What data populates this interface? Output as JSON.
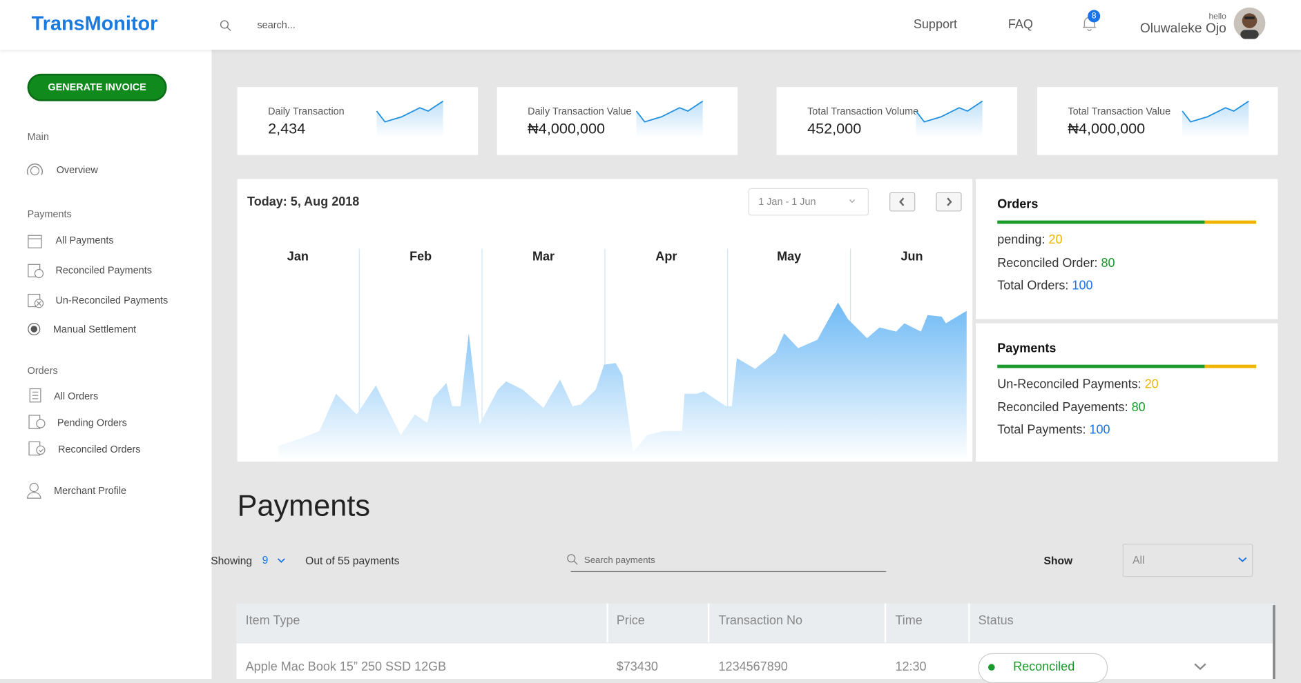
{
  "header": {
    "logo": "TransMonitor",
    "search_placeholder": "search...",
    "nav": [
      "Support",
      "FAQ"
    ],
    "notifications": 8,
    "greeting": "hello",
    "user": "Oluwaleke Ojo"
  },
  "sidebar": {
    "button": "GENERATE INVOICE",
    "sections": [
      {
        "title": "Main",
        "items": [
          "Overview"
        ]
      },
      {
        "title": "Payments",
        "items": [
          "All Payments",
          "Reconciled Payments",
          "Un-Reconciled Payments",
          "Manual Settlement"
        ]
      },
      {
        "title": "Orders",
        "items": [
          "All Orders",
          "Pending Orders",
          "Reconciled Orders"
        ]
      }
    ],
    "profile": "Merchant Profile"
  },
  "stats": [
    {
      "label": "Daily Transaction",
      "value": "2,434"
    },
    {
      "label": "Daily Transaction Value",
      "value": "₦4,000,000"
    },
    {
      "label": "Total Transaction Volume",
      "value": "452,000"
    },
    {
      "label": "Total Transaction Value",
      "value": "₦4,000,000"
    }
  ],
  "chart_panel": {
    "title": "Today: 5, Aug 2018",
    "date_range": "1 Jan - 1 Jun",
    "months": [
      "Jan",
      "Feb",
      "Mar",
      "Apr",
      "May",
      "Jun"
    ]
  },
  "orders": {
    "title": "Orders",
    "items": [
      {
        "label": "pending:",
        "value": 20
      },
      {
        "label": "Reconciled Order:",
        "value": 80
      },
      {
        "label": "Total Orders:",
        "value": 100
      }
    ]
  },
  "payments_summary": {
    "title": "Payments",
    "items": [
      {
        "label": "Un-Reconciled Payments:",
        "value": 20
      },
      {
        "label": "Reconciled Payements:",
        "value": 80
      },
      {
        "label": "Total Payments:",
        "value": 100
      }
    ]
  },
  "payments": {
    "heading": "Payments",
    "showing_label": "Showing",
    "showing_count": 9,
    "total_text": "Out of 55 payments",
    "search_placeholder": "Search payments",
    "show_label": "Show",
    "show_value": "All",
    "columns": [
      "Item Type",
      "Price",
      "Transaction No",
      "Time",
      "Status"
    ],
    "rows": [
      [
        "Apple Mac Book 15” 250 SSD 12GB",
        "$73430",
        "1234567890",
        "12:30",
        "Reconciled"
      ]
    ]
  }
}
